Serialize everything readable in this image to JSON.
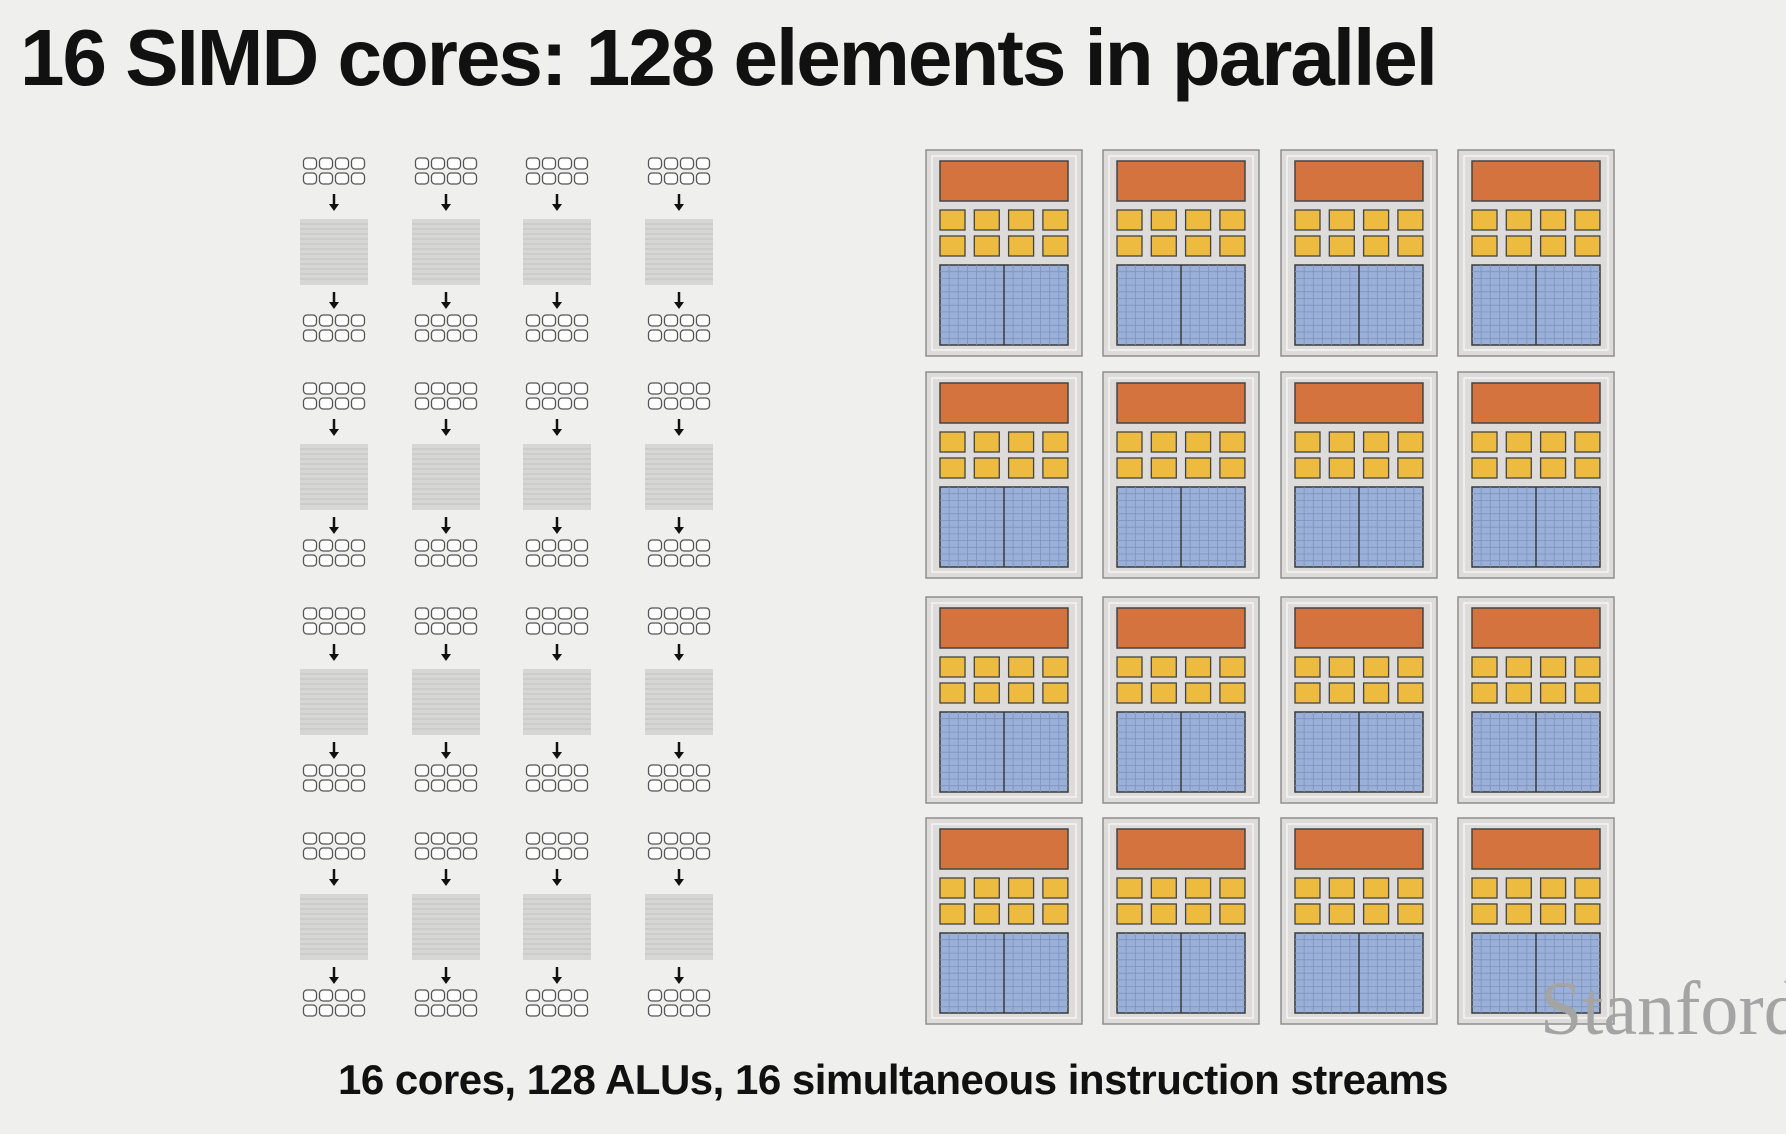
{
  "title": "16 SIMD cores: 128 elements in parallel",
  "caption": "16 cores, 128 ALUs, 16 simultaneous instruction streams",
  "watermark": "Stanford",
  "colors": {
    "background": "#efefee",
    "fetch_decode": "#d4733d",
    "alu": "#ecbb3f",
    "context": "#9ab0d8",
    "core_frame": "#dddcda",
    "instruction_stream": "#d6d6d4"
  },
  "streams_grid": {
    "rows": 4,
    "cols": 4,
    "elements_per_stream": 8
  },
  "cores_grid": {
    "rows": 4,
    "cols": 4,
    "alus_per_core": 8
  }
}
